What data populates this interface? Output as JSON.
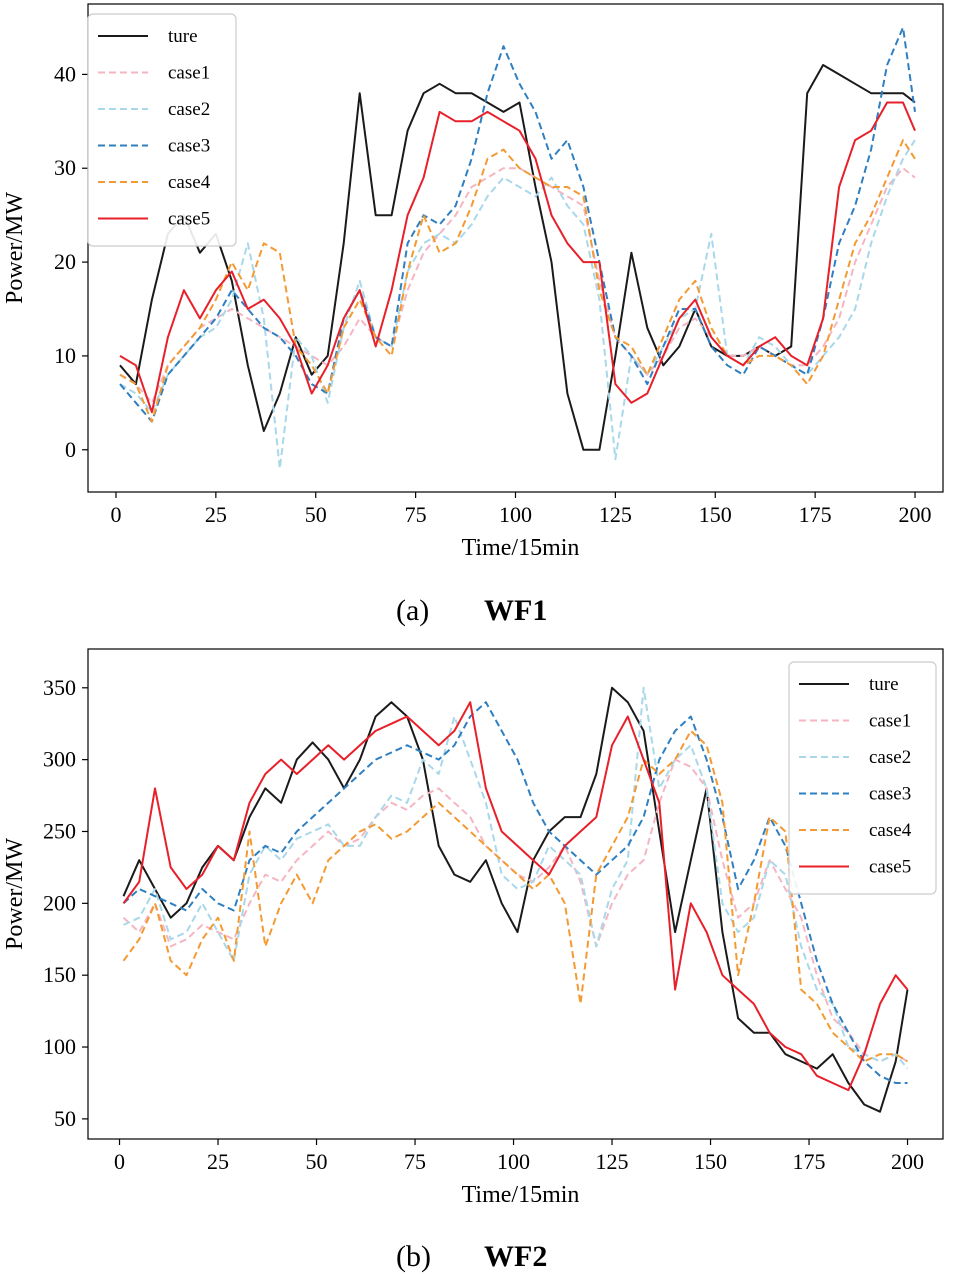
{
  "captions": [
    {
      "letter": "(a)",
      "title": "WF1"
    },
    {
      "letter": "(b)",
      "title": "WF2"
    }
  ],
  "colors": {
    "ture": "#1a1a1a",
    "case1": "#f4b6c2",
    "case2": "#a8d8ea",
    "case3": "#2f7fc1",
    "case4": "#f39a33",
    "case5": "#e8202a"
  },
  "chart_data": [
    {
      "type": "line",
      "xlabel": "Time/15min",
      "ylabel": "Power/MW",
      "xlim": [
        -7,
        207
      ],
      "ylim": [
        -4.5,
        47.5
      ],
      "xticks": [
        0,
        25,
        50,
        75,
        100,
        125,
        150,
        175,
        200
      ],
      "yticks": [
        0,
        10,
        20,
        30,
        40
      ],
      "legend_position": "upper-left",
      "legend": [
        "ture",
        "case1",
        "case2",
        "case3",
        "case4",
        "case5"
      ],
      "x": [
        1,
        5,
        9,
        13,
        17,
        21,
        25,
        29,
        33,
        37,
        41,
        45,
        49,
        53,
        57,
        61,
        65,
        69,
        73,
        77,
        81,
        85,
        89,
        93,
        97,
        101,
        105,
        109,
        113,
        117,
        121,
        125,
        129,
        133,
        137,
        141,
        145,
        149,
        153,
        157,
        161,
        165,
        169,
        173,
        177,
        181,
        185,
        189,
        193,
        197,
        200
      ],
      "series": [
        {
          "name": "ture",
          "style": "solid",
          "values": [
            9,
            7,
            16,
            23,
            25,
            21,
            23,
            18,
            9,
            2,
            6,
            12,
            8,
            10,
            22,
            38,
            25,
            25,
            34,
            38,
            39,
            38,
            38,
            37,
            36,
            37,
            28,
            20,
            6,
            0,
            0,
            10,
            21,
            13,
            9,
            11,
            15,
            11,
            10,
            10,
            11,
            10,
            11,
            38,
            41,
            40,
            39,
            38,
            38,
            38,
            37
          ]
        },
        {
          "name": "case1",
          "style": "dashed",
          "values": [
            8,
            7,
            5,
            9,
            11,
            13,
            14,
            15,
            14,
            13,
            12,
            11,
            10,
            9,
            11,
            14,
            12,
            11,
            17,
            21,
            23,
            25,
            28,
            29,
            30,
            30,
            29,
            28,
            27,
            26,
            18,
            12,
            10,
            8,
            10,
            13,
            14,
            12,
            10,
            10,
            11,
            10,
            9,
            9,
            11,
            14,
            20,
            24,
            28,
            30,
            29
          ]
        },
        {
          "name": "case2",
          "style": "dashed",
          "values": [
            7,
            6,
            4,
            8,
            10,
            12,
            13,
            16,
            22,
            14,
            -2,
            12,
            10,
            5,
            13,
            18,
            12,
            11,
            19,
            22,
            23,
            22,
            24,
            27,
            29,
            28,
            27,
            29,
            26,
            24,
            16,
            -1,
            10,
            8,
            11,
            14,
            15,
            23,
            10,
            9,
            12,
            11,
            9,
            8,
            10,
            12,
            15,
            22,
            27,
            31,
            33
          ]
        },
        {
          "name": "case3",
          "style": "dashed",
          "values": [
            7,
            5,
            3,
            8,
            10,
            12,
            14,
            17,
            15,
            13,
            12,
            10,
            7,
            6,
            14,
            17,
            12,
            11,
            22,
            25,
            24,
            26,
            31,
            38,
            43,
            39,
            36,
            31,
            33,
            28,
            20,
            12,
            10,
            7,
            11,
            15,
            15,
            11,
            9,
            8,
            11,
            10,
            9,
            8,
            14,
            22,
            26,
            32,
            41,
            45,
            36
          ]
        },
        {
          "name": "case4",
          "style": "dashed",
          "values": [
            8,
            7,
            3,
            9,
            11,
            13,
            16,
            20,
            17,
            22,
            21,
            11,
            9,
            6,
            13,
            16,
            12,
            10,
            19,
            25,
            21,
            22,
            26,
            31,
            32,
            30,
            29,
            28,
            28,
            27,
            17,
            12,
            11,
            8,
            12,
            16,
            18,
            13,
            10,
            9,
            10,
            10,
            9,
            7,
            10,
            16,
            22,
            25,
            29,
            33,
            31
          ]
        },
        {
          "name": "case5",
          "style": "solid",
          "values": [
            10,
            9,
            4,
            12,
            17,
            14,
            17,
            19,
            15,
            16,
            14,
            11,
            6,
            9,
            14,
            17,
            11,
            17,
            25,
            29,
            36,
            35,
            35,
            36,
            35,
            34,
            31,
            25,
            22,
            20,
            20,
            7,
            5,
            6,
            10,
            14,
            16,
            12,
            10,
            9,
            11,
            12,
            10,
            9,
            14,
            28,
            33,
            34,
            37,
            37,
            34
          ]
        }
      ]
    },
    {
      "type": "line",
      "xlabel": "Time/15min",
      "ylabel": "Power/MW",
      "xlim": [
        -8,
        209
      ],
      "ylim": [
        36,
        377
      ],
      "xticks": [
        0,
        25,
        50,
        75,
        100,
        125,
        150,
        175,
        200
      ],
      "yticks": [
        50,
        100,
        150,
        200,
        250,
        300,
        350
      ],
      "legend_position": "upper-right",
      "legend": [
        "ture",
        "case1",
        "case2",
        "case3",
        "case4",
        "case5"
      ],
      "x": [
        1,
        5,
        9,
        13,
        17,
        21,
        25,
        29,
        33,
        37,
        41,
        45,
        49,
        53,
        57,
        61,
        65,
        69,
        73,
        77,
        81,
        85,
        89,
        93,
        97,
        101,
        105,
        109,
        113,
        117,
        121,
        125,
        129,
        133,
        137,
        141,
        145,
        149,
        153,
        157,
        161,
        165,
        169,
        173,
        177,
        181,
        185,
        189,
        193,
        197,
        200
      ],
      "series": [
        {
          "name": "ture",
          "style": "solid",
          "values": [
            205,
            230,
            210,
            190,
            200,
            225,
            240,
            230,
            260,
            280,
            270,
            300,
            312,
            300,
            280,
            300,
            330,
            340,
            330,
            300,
            240,
            220,
            215,
            230,
            200,
            180,
            230,
            250,
            260,
            260,
            290,
            350,
            340,
            320,
            250,
            180,
            230,
            280,
            180,
            120,
            110,
            110,
            95,
            90,
            85,
            95,
            75,
            60,
            55,
            90,
            140
          ]
        },
        {
          "name": "case1",
          "style": "dashed",
          "values": [
            190,
            180,
            200,
            170,
            175,
            185,
            180,
            175,
            200,
            220,
            215,
            230,
            240,
            250,
            240,
            245,
            260,
            270,
            265,
            275,
            280,
            270,
            260,
            240,
            230,
            220,
            215,
            225,
            240,
            215,
            170,
            200,
            220,
            230,
            270,
            300,
            295,
            280,
            230,
            190,
            200,
            230,
            210,
            190,
            150,
            120,
            110,
            95,
            90,
            95,
            90
          ]
        },
        {
          "name": "case2",
          "style": "dashed",
          "values": [
            185,
            190,
            210,
            175,
            180,
            200,
            180,
            160,
            220,
            240,
            230,
            245,
            250,
            255,
            240,
            240,
            260,
            275,
            270,
            300,
            290,
            330,
            300,
            270,
            220,
            210,
            215,
            240,
            230,
            220,
            170,
            210,
            230,
            350,
            280,
            300,
            310,
            280,
            200,
            180,
            190,
            230,
            220,
            170,
            140,
            130,
            100,
            95,
            90,
            95,
            85
          ]
        },
        {
          "name": "case3",
          "style": "dashed",
          "values": [
            200,
            210,
            205,
            200,
            195,
            210,
            200,
            195,
            230,
            240,
            235,
            250,
            260,
            270,
            280,
            290,
            300,
            305,
            310,
            305,
            300,
            310,
            330,
            340,
            320,
            300,
            270,
            250,
            240,
            230,
            220,
            230,
            240,
            260,
            300,
            320,
            330,
            300,
            260,
            210,
            230,
            260,
            240,
            200,
            160,
            130,
            110,
            90,
            80,
            75,
            75
          ]
        },
        {
          "name": "case4",
          "style": "dashed",
          "values": [
            160,
            175,
            200,
            160,
            150,
            175,
            190,
            160,
            250,
            170,
            200,
            220,
            200,
            230,
            240,
            250,
            255,
            245,
            250,
            260,
            270,
            260,
            250,
            240,
            230,
            220,
            210,
            220,
            200,
            130,
            220,
            240,
            260,
            300,
            290,
            300,
            320,
            310,
            270,
            150,
            200,
            260,
            250,
            140,
            130,
            110,
            100,
            90,
            95,
            95,
            90
          ]
        },
        {
          "name": "case5",
          "style": "solid",
          "values": [
            200,
            215,
            280,
            225,
            210,
            220,
            240,
            230,
            270,
            290,
            300,
            290,
            300,
            310,
            300,
            310,
            320,
            325,
            330,
            320,
            310,
            320,
            340,
            280,
            250,
            240,
            230,
            220,
            240,
            250,
            260,
            310,
            330,
            300,
            270,
            140,
            200,
            180,
            150,
            140,
            130,
            110,
            100,
            95,
            80,
            75,
            70,
            95,
            130,
            150,
            140
          ]
        }
      ]
    }
  ]
}
